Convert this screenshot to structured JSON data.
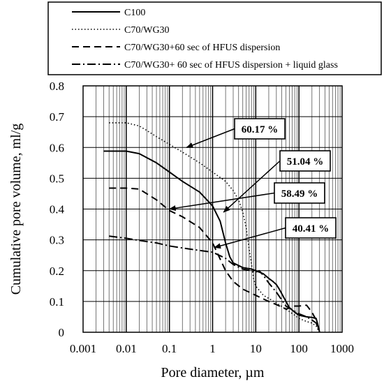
{
  "chart_data": {
    "type": "line",
    "xscale": "log",
    "xlim": [
      0.001,
      1000
    ],
    "ylim": [
      0,
      0.8
    ],
    "xlabel": "Pore diameter, µm",
    "ylabel": "Cumulative pore volume, ml/g",
    "grid": true,
    "legend_position": "top",
    "x_ticks": [
      "0.001",
      "0.01",
      "0.1",
      "1",
      "10",
      "100",
      "1000"
    ],
    "y_ticks": [
      "0",
      "0.1",
      "0.2",
      "0.3",
      "0.4",
      "0.5",
      "0.6",
      "0.7",
      "0.8"
    ],
    "series": [
      {
        "name": "C100",
        "dash": "solid",
        "points": [
          [
            0.003,
            0.588
          ],
          [
            0.01,
            0.588
          ],
          [
            0.02,
            0.58
          ],
          [
            0.05,
            0.55
          ],
          [
            0.1,
            0.52
          ],
          [
            0.2,
            0.49
          ],
          [
            0.5,
            0.455
          ],
          [
            1,
            0.41
          ],
          [
            1.5,
            0.36
          ],
          [
            2,
            0.29
          ],
          [
            2.5,
            0.245
          ],
          [
            3,
            0.225
          ],
          [
            5,
            0.21
          ],
          [
            8,
            0.205
          ],
          [
            10,
            0.2
          ],
          [
            15,
            0.19
          ],
          [
            20,
            0.175
          ],
          [
            25,
            0.165
          ],
          [
            30,
            0.155
          ],
          [
            35,
            0.14
          ],
          [
            40,
            0.125
          ],
          [
            50,
            0.1
          ],
          [
            60,
            0.08
          ],
          [
            80,
            0.065
          ],
          [
            100,
            0.055
          ],
          [
            150,
            0.05
          ],
          [
            200,
            0.048
          ],
          [
            250,
            0.045
          ],
          [
            280,
            0.02
          ],
          [
            300,
            0.0
          ]
        ]
      },
      {
        "name": "C70/WG30",
        "dash": "dotted",
        "points": [
          [
            0.004,
            0.68
          ],
          [
            0.01,
            0.68
          ],
          [
            0.02,
            0.67
          ],
          [
            0.03,
            0.655
          ],
          [
            0.05,
            0.635
          ],
          [
            0.1,
            0.61
          ],
          [
            0.2,
            0.585
          ],
          [
            0.5,
            0.55
          ],
          [
            1,
            0.52
          ],
          [
            2,
            0.49
          ],
          [
            3,
            0.46
          ],
          [
            4,
            0.43
          ],
          [
            5,
            0.39
          ],
          [
            6,
            0.34
          ],
          [
            7,
            0.27
          ],
          [
            8,
            0.22
          ],
          [
            9,
            0.17
          ],
          [
            10,
            0.15
          ],
          [
            15,
            0.12
          ],
          [
            20,
            0.11
          ],
          [
            30,
            0.095
          ],
          [
            50,
            0.075
          ],
          [
            80,
            0.055
          ],
          [
            100,
            0.045
          ],
          [
            150,
            0.035
          ],
          [
            200,
            0.03
          ],
          [
            250,
            0.02
          ],
          [
            300,
            0.0
          ]
        ]
      },
      {
        "name": "C70/WG30+60 sec of HFUS dispersion",
        "dash": "dashed",
        "points": [
          [
            0.004,
            0.468
          ],
          [
            0.01,
            0.468
          ],
          [
            0.02,
            0.465
          ],
          [
            0.05,
            0.43
          ],
          [
            0.1,
            0.395
          ],
          [
            0.2,
            0.375
          ],
          [
            0.5,
            0.34
          ],
          [
            1,
            0.29
          ],
          [
            2,
            0.2
          ],
          [
            3,
            0.165
          ],
          [
            5,
            0.14
          ],
          [
            10,
            0.12
          ],
          [
            20,
            0.1
          ],
          [
            30,
            0.09
          ],
          [
            50,
            0.075
          ],
          [
            80,
            0.085
          ],
          [
            100,
            0.085
          ],
          [
            150,
            0.088
          ],
          [
            200,
            0.065
          ],
          [
            250,
            0.04
          ],
          [
            300,
            0.0
          ]
        ]
      },
      {
        "name": "C70/WG30+ 60 sec of HFUS dispersion + liquid glass",
        "dash": "dashdot",
        "points": [
          [
            0.004,
            0.312
          ],
          [
            0.01,
            0.305
          ],
          [
            0.02,
            0.298
          ],
          [
            0.05,
            0.29
          ],
          [
            0.1,
            0.28
          ],
          [
            0.3,
            0.27
          ],
          [
            1,
            0.26
          ],
          [
            2,
            0.24
          ],
          [
            3,
            0.22
          ],
          [
            5,
            0.205
          ],
          [
            8,
            0.2
          ],
          [
            10,
            0.195
          ],
          [
            12,
            0.2
          ],
          [
            15,
            0.185
          ],
          [
            20,
            0.16
          ],
          [
            30,
            0.13
          ],
          [
            50,
            0.085
          ],
          [
            100,
            0.06
          ],
          [
            150,
            0.05
          ],
          [
            200,
            0.04
          ],
          [
            250,
            0.03
          ],
          [
            300,
            0.0
          ]
        ]
      }
    ],
    "annotations": [
      {
        "text": "60.17 %",
        "target": [
          0.25,
          0.6
        ]
      },
      {
        "text": "51.04 %",
        "target": [
          1.8,
          0.39
        ]
      },
      {
        "text": "58.49 %",
        "target": [
          0.1,
          0.4
        ]
      },
      {
        "text": "40.41 %",
        "target": [
          1.1,
          0.275
        ]
      }
    ]
  }
}
